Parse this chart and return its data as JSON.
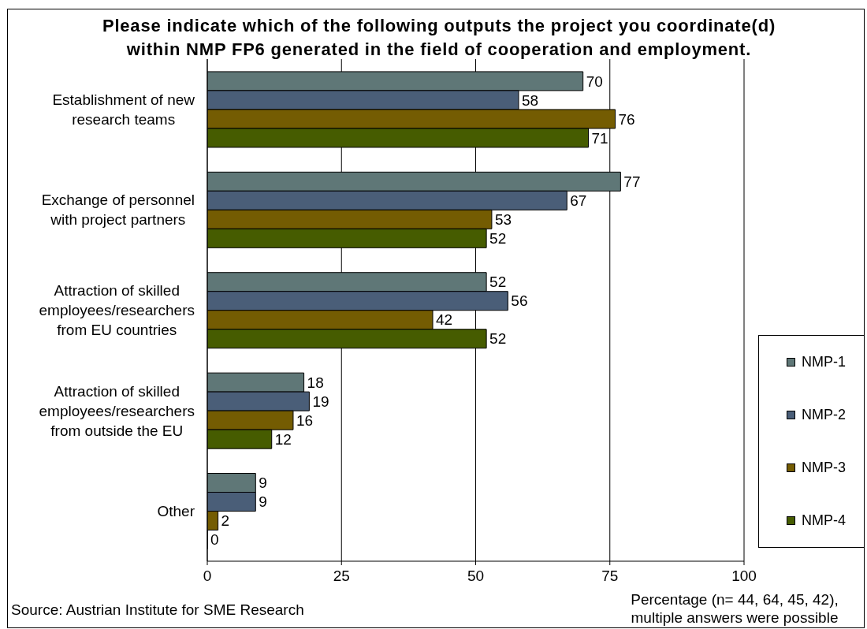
{
  "chart_data": {
    "type": "bar",
    "orientation": "horizontal",
    "title": "Please indicate which of the following outputs the project you coordinate(d) within NMP FP6 generated in the field of cooperation and employment.",
    "xlabel": "Percentage (n= 44, 64, 45, 42), multiple answers were possible",
    "annotations": [
      "Source: Austrian Institute for SME Research"
    ],
    "categories": [
      "Establishment of new research teams",
      "Exchange of personnel with project partners",
      "Attraction of skilled employees/researchers from EU countries",
      "Attraction of skilled employees/researchers from outside the EU",
      "Other"
    ],
    "series": [
      {
        "name": "NMP-1",
        "color": "#5f7777",
        "values": [
          70,
          77,
          52,
          18,
          9
        ]
      },
      {
        "name": "NMP-2",
        "color": "#4a5e78",
        "values": [
          58,
          67,
          56,
          19,
          9
        ]
      },
      {
        "name": "NMP-3",
        "color": "#745c02",
        "values": [
          76,
          53,
          42,
          16,
          2
        ]
      },
      {
        "name": "NMP-4",
        "color": "#465c00",
        "values": [
          71,
          52,
          52,
          12,
          0
        ]
      }
    ],
    "xlim": [
      0,
      100
    ],
    "xticks": [
      0,
      25,
      50,
      75,
      100
    ],
    "grid": "x",
    "legend": "right",
    "data_labels": true
  }
}
